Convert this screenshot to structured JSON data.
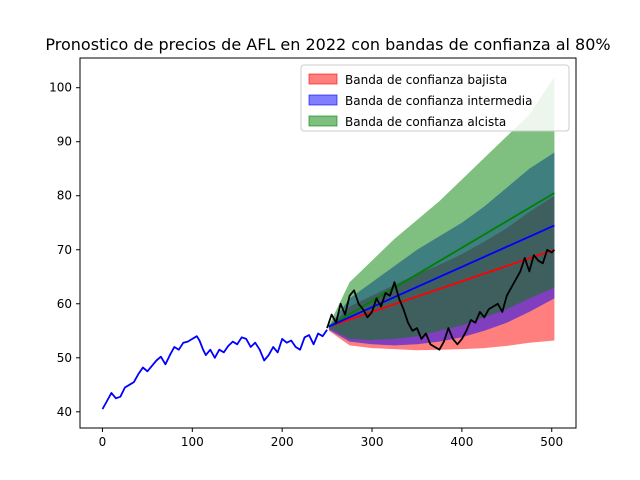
{
  "chart_data": {
    "type": "line",
    "title": "Pronostico de precios de AFL en 2022 con bandas de confianza al 80%",
    "xlabel": "",
    "ylabel": "",
    "xlim": [
      -25,
      527
    ],
    "ylim": [
      37,
      105.5
    ],
    "xticks": [
      0,
      100,
      200,
      300,
      400,
      500
    ],
    "yticks": [
      40,
      50,
      60,
      70,
      80,
      90,
      100
    ],
    "grid": false,
    "legend_position": "top-right",
    "legend": [
      {
        "label": "Banda de confianza bajista",
        "color": "#ff0000",
        "alpha": 0.5
      },
      {
        "label": "Banda de confianza intermedia",
        "color": "#0000ff",
        "alpha": 0.5
      },
      {
        "label": "Banda de confianza alcista",
        "color": "#008000",
        "alpha": 0.5
      }
    ],
    "bands": [
      {
        "name": "Banda de confianza bajista",
        "color": "#ff0000",
        "alpha": 0.5,
        "x": [
          252,
          275,
          300,
          325,
          350,
          375,
          400,
          425,
          450,
          475,
          503
        ],
        "lower": [
          55,
          52.3,
          51.8,
          51.6,
          51.4,
          51.5,
          51.6,
          51.8,
          52.2,
          52.8,
          53.2
        ],
        "upper": [
          55.5,
          59.5,
          61.5,
          63.5,
          65.5,
          67.2,
          69.2,
          71.5,
          74,
          77,
          80
        ]
      },
      {
        "name": "Banda de confianza intermedia",
        "color": "#0000ff",
        "alpha": 0.5,
        "x": [
          252,
          275,
          300,
          325,
          350,
          375,
          400,
          425,
          450,
          475,
          503
        ],
        "lower": [
          55.2,
          53,
          52.5,
          52.3,
          52.5,
          53,
          53.8,
          55,
          56.5,
          58.5,
          61
        ],
        "upper": [
          55.8,
          61,
          64,
          67,
          70,
          72.5,
          75,
          78,
          81.5,
          85,
          88
        ]
      },
      {
        "name": "Banda de confianza alcista",
        "color": "#008000",
        "alpha": 0.5,
        "x": [
          252,
          275,
          300,
          325,
          350,
          375,
          400,
          425,
          450,
          475,
          503
        ],
        "lower": [
          55.5,
          53.5,
          53.3,
          53.5,
          54,
          55,
          56,
          57.5,
          59,
          61,
          63
        ],
        "upper": [
          56,
          64,
          68,
          72,
          75.5,
          79,
          83,
          87,
          91,
          95,
          102
        ]
      }
    ],
    "series": [
      {
        "color": "#0000ff",
        "x": [
          0,
          5,
          10,
          15,
          20,
          25,
          30,
          35,
          40,
          45,
          50,
          55,
          60,
          65,
          70,
          75,
          80,
          85,
          90,
          95,
          100,
          105,
          108,
          112,
          115,
          120,
          125,
          130,
          135,
          140,
          145,
          150,
          155,
          160,
          165,
          170,
          175,
          180,
          185,
          190,
          195,
          200,
          205,
          210,
          215,
          220,
          225,
          230,
          235,
          240,
          245,
          250
        ],
        "y": [
          40.5,
          42,
          43.5,
          42.5,
          42.8,
          44.5,
          45,
          45.5,
          47,
          48.2,
          47.5,
          48.5,
          49.5,
          50.2,
          48.8,
          50.5,
          52,
          51.5,
          52.8,
          53,
          53.5,
          54,
          53.2,
          51.5,
          50.5,
          51.5,
          50,
          51.5,
          51,
          52.2,
          53,
          52.5,
          53.8,
          53.5,
          52,
          52.8,
          51.5,
          49.5,
          50.5,
          52,
          51,
          53.5,
          52.8,
          53.2,
          52,
          51.5,
          53.8,
          54.2,
          52.5,
          54.5,
          54,
          55.2
        ]
      },
      {
        "color": "#ff0000",
        "x": [
          252,
          503
        ],
        "y": [
          55.8,
          70
        ]
      },
      {
        "color": "#008000",
        "x": [
          252,
          503
        ],
        "y": [
          55.8,
          80.5
        ]
      },
      {
        "color": "#0000ff",
        "x": [
          252,
          503
        ],
        "y": [
          55.8,
          74.5
        ]
      },
      {
        "color": "#000000",
        "x": [
          250,
          255,
          260,
          265,
          270,
          275,
          280,
          285,
          290,
          295,
          300,
          305,
          310,
          315,
          320,
          325,
          330,
          335,
          340,
          345,
          350,
          355,
          360,
          365,
          370,
          375,
          380,
          385,
          390,
          395,
          400,
          405,
          410,
          415,
          420,
          425,
          430,
          435,
          440,
          445,
          450,
          455,
          460,
          465,
          470,
          475,
          480,
          485,
          490,
          495,
          500,
          503
        ],
        "y": [
          55.5,
          58,
          56.5,
          60,
          58,
          61.5,
          62.5,
          60,
          59,
          57.5,
          58.5,
          61,
          59.5,
          62,
          61.5,
          64,
          61,
          59,
          56.5,
          55,
          55.5,
          53.5,
          54.5,
          52.5,
          52,
          51.5,
          53,
          55.5,
          53.5,
          52.5,
          53.5,
          55,
          57,
          56.5,
          58.5,
          57.5,
          59,
          59.5,
          60,
          58.5,
          61.5,
          63,
          64.5,
          66,
          68.5,
          66,
          69,
          68,
          67.5,
          70,
          69.5,
          70
        ]
      }
    ]
  }
}
